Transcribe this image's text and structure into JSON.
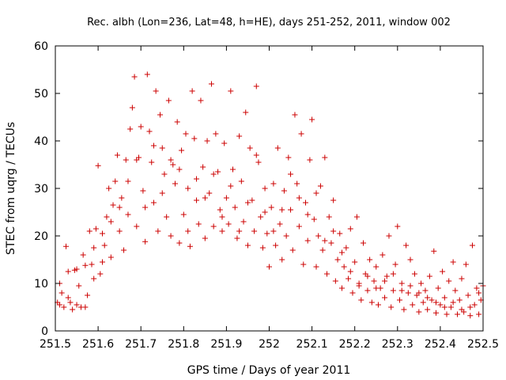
{
  "chart_data": {
    "type": "scatter",
    "title": "Rec. albh (Lon=236, Lat=48, h=HE), days 251-252, 2011, window 002",
    "xlabel": "GPS time / Days of year 2011",
    "ylabel": "STEC from uqrg / TECUs",
    "xlim": [
      251.5,
      252.5
    ],
    "ylim": [
      0,
      60
    ],
    "x_ticks": [
      251.5,
      251.6,
      251.7,
      251.8,
      251.9,
      252.0,
      252.1,
      252.2,
      252.3,
      252.4,
      252.5
    ],
    "x_tick_labels": [
      "251.5",
      "251.6",
      "251.7",
      "251.8",
      "251.9",
      "252",
      "252.1",
      "252.2",
      "252.3",
      "252.4",
      "252.5"
    ],
    "y_ticks": [
      0,
      10,
      20,
      30,
      40,
      50,
      60
    ],
    "y_tick_labels": [
      "0",
      "10",
      "20",
      "30",
      "40",
      "50",
      "60"
    ],
    "marker": "+",
    "color": "#cc0000",
    "grid": false,
    "legend": "none",
    "series": [
      {
        "name": "STEC",
        "points": [
          [
            251.505,
            6.0
          ],
          [
            251.51,
            5.5
          ],
          [
            251.515,
            8.0
          ],
          [
            251.52,
            5.0
          ],
          [
            251.525,
            17.8
          ],
          [
            251.53,
            12.5
          ],
          [
            251.535,
            6.0
          ],
          [
            251.54,
            4.5
          ],
          [
            251.545,
            12.8
          ],
          [
            251.55,
            5.5
          ],
          [
            251.555,
            9.5
          ],
          [
            251.56,
            5.0
          ],
          [
            251.565,
            16.0
          ],
          [
            251.57,
            13.8
          ],
          [
            251.575,
            7.5
          ],
          [
            251.58,
            21.0
          ],
          [
            251.585,
            14.0
          ],
          [
            251.59,
            11.0
          ],
          [
            251.595,
            21.5
          ],
          [
            251.6,
            34.8
          ],
          [
            251.605,
            12.0
          ],
          [
            251.61,
            20.5
          ],
          [
            251.615,
            18.0
          ],
          [
            251.62,
            24.0
          ],
          [
            251.625,
            30.0
          ],
          [
            251.63,
            15.5
          ],
          [
            251.635,
            26.5
          ],
          [
            251.64,
            31.5
          ],
          [
            251.645,
            37.0
          ],
          [
            251.65,
            21.0
          ],
          [
            251.655,
            28.0
          ],
          [
            251.66,
            17.0
          ],
          [
            251.665,
            36.0
          ],
          [
            251.67,
            24.5
          ],
          [
            251.675,
            42.5
          ],
          [
            251.68,
            47.0
          ],
          [
            251.685,
            53.5
          ],
          [
            251.69,
            22.0
          ],
          [
            251.695,
            36.5
          ],
          [
            251.7,
            43.0
          ],
          [
            251.705,
            29.5
          ],
          [
            251.71,
            18.8
          ],
          [
            251.715,
            54.0
          ],
          [
            251.72,
            42.0
          ],
          [
            251.725,
            35.5
          ],
          [
            251.73,
            27.0
          ],
          [
            251.735,
            50.5
          ],
          [
            251.74,
            21.0
          ],
          [
            251.745,
            45.5
          ],
          [
            251.75,
            38.5
          ],
          [
            251.755,
            33.0
          ],
          [
            251.76,
            24.0
          ],
          [
            251.765,
            48.5
          ],
          [
            251.77,
            20.0
          ],
          [
            251.775,
            35.0
          ],
          [
            251.78,
            31.0
          ],
          [
            251.785,
            44.0
          ],
          [
            251.79,
            18.5
          ],
          [
            251.795,
            38.0
          ],
          [
            251.8,
            24.5
          ],
          [
            251.805,
            41.5
          ],
          [
            251.81,
            30.0
          ],
          [
            251.815,
            17.8
          ],
          [
            251.82,
            50.5
          ],
          [
            251.825,
            40.5
          ],
          [
            251.83,
            27.5
          ],
          [
            251.835,
            22.5
          ],
          [
            251.84,
            48.5
          ],
          [
            251.845,
            34.5
          ],
          [
            251.85,
            19.5
          ],
          [
            251.855,
            40.0
          ],
          [
            251.86,
            29.0
          ],
          [
            251.865,
            52.0
          ],
          [
            251.87,
            22.0
          ],
          [
            251.875,
            41.5
          ],
          [
            251.88,
            33.5
          ],
          [
            251.885,
            25.5
          ],
          [
            251.89,
            21.0
          ],
          [
            251.895,
            39.5
          ],
          [
            251.9,
            28.0
          ],
          [
            251.905,
            22.5
          ],
          [
            251.91,
            50.5
          ],
          [
            251.915,
            34.0
          ],
          [
            251.92,
            26.0
          ],
          [
            251.925,
            19.5
          ],
          [
            251.93,
            41.0
          ],
          [
            251.935,
            31.5
          ],
          [
            251.94,
            23.0
          ],
          [
            251.945,
            46.0
          ],
          [
            251.95,
            18.0
          ],
          [
            251.955,
            38.5
          ],
          [
            251.96,
            27.5
          ],
          [
            251.965,
            21.0
          ],
          [
            251.97,
            51.5
          ],
          [
            251.975,
            35.5
          ],
          [
            251.98,
            24.0
          ],
          [
            251.985,
            17.5
          ],
          [
            251.99,
            30.0
          ],
          [
            251.995,
            20.5
          ],
          [
            252.0,
            13.5
          ],
          [
            252.005,
            26.0
          ],
          [
            252.01,
            31.0
          ],
          [
            252.015,
            18.0
          ],
          [
            252.02,
            38.5
          ],
          [
            252.025,
            22.5
          ],
          [
            252.03,
            15.0
          ],
          [
            252.035,
            29.5
          ],
          [
            252.04,
            20.0
          ],
          [
            252.045,
            36.5
          ],
          [
            252.05,
            25.5
          ],
          [
            252.055,
            17.0
          ],
          [
            252.06,
            45.5
          ],
          [
            252.065,
            31.0
          ],
          [
            252.07,
            22.0
          ],
          [
            252.075,
            41.5
          ],
          [
            252.08,
            14.0
          ],
          [
            252.085,
            27.0
          ],
          [
            252.09,
            19.0
          ],
          [
            252.095,
            36.0
          ],
          [
            252.1,
            44.5
          ],
          [
            252.105,
            23.5
          ],
          [
            252.11,
            13.5
          ],
          [
            252.115,
            20.0
          ],
          [
            252.12,
            30.5
          ],
          [
            252.125,
            17.0
          ],
          [
            252.13,
            36.5
          ],
          [
            252.135,
            12.0
          ],
          [
            252.14,
            24.0
          ],
          [
            252.145,
            18.5
          ],
          [
            252.15,
            27.5
          ],
          [
            252.155,
            10.5
          ],
          [
            252.16,
            15.0
          ],
          [
            252.165,
            20.5
          ],
          [
            252.17,
            9.0
          ],
          [
            252.175,
            13.5
          ],
          [
            252.18,
            17.5
          ],
          [
            252.185,
            11.0
          ],
          [
            252.19,
            21.5
          ],
          [
            252.195,
            8.0
          ],
          [
            252.2,
            14.5
          ],
          [
            252.205,
            24.0
          ],
          [
            252.21,
            10.0
          ],
          [
            252.215,
            6.5
          ],
          [
            252.22,
            18.5
          ],
          [
            252.225,
            12.0
          ],
          [
            252.23,
            8.5
          ],
          [
            252.235,
            15.0
          ],
          [
            252.24,
            6.0
          ],
          [
            252.245,
            10.5
          ],
          [
            252.25,
            13.5
          ],
          [
            252.255,
            5.5
          ],
          [
            252.26,
            9.0
          ],
          [
            252.265,
            16.0
          ],
          [
            252.27,
            7.0
          ],
          [
            252.275,
            11.5
          ],
          [
            252.28,
            20.0
          ],
          [
            252.285,
            5.0
          ],
          [
            252.29,
            8.5
          ],
          [
            252.295,
            14.0
          ],
          [
            252.3,
            22.0
          ],
          [
            252.305,
            6.5
          ],
          [
            252.31,
            10.0
          ],
          [
            252.315,
            4.5
          ],
          [
            252.32,
            18.0
          ],
          [
            252.325,
            8.0
          ],
          [
            252.33,
            15.0
          ],
          [
            252.335,
            5.5
          ],
          [
            252.34,
            12.0
          ],
          [
            252.345,
            7.5
          ],
          [
            252.35,
            4.0
          ],
          [
            252.355,
            10.0
          ],
          [
            252.36,
            6.0
          ],
          [
            252.365,
            8.5
          ],
          [
            252.37,
            4.5
          ],
          [
            252.375,
            11.5
          ],
          [
            252.38,
            6.5
          ],
          [
            252.385,
            16.8
          ],
          [
            252.39,
            3.8
          ],
          [
            252.395,
            9.0
          ],
          [
            252.4,
            5.5
          ],
          [
            252.405,
            12.5
          ],
          [
            252.41,
            7.0
          ],
          [
            252.415,
            3.5
          ],
          [
            252.42,
            10.5
          ],
          [
            252.425,
            5.0
          ],
          [
            252.43,
            14.5
          ],
          [
            252.435,
            8.5
          ],
          [
            252.44,
            3.5
          ],
          [
            252.445,
            6.5
          ],
          [
            252.45,
            11.0
          ],
          [
            252.455,
            4.0
          ],
          [
            252.46,
            14.0
          ],
          [
            252.465,
            7.5
          ],
          [
            252.47,
            3.2
          ],
          [
            252.475,
            18.0
          ],
          [
            252.48,
            5.5
          ],
          [
            252.485,
            9.0
          ],
          [
            252.49,
            3.5
          ],
          [
            252.495,
            6.5
          ],
          [
            252.5,
            9.5
          ],
          [
            251.51,
            10.0
          ],
          [
            251.53,
            7.0
          ],
          [
            251.55,
            13.0
          ],
          [
            251.57,
            5.0
          ],
          [
            251.59,
            17.5
          ],
          [
            251.61,
            14.5
          ],
          [
            251.63,
            23.0
          ],
          [
            251.65,
            26.0
          ],
          [
            251.67,
            31.5
          ],
          [
            251.69,
            36.0
          ],
          [
            251.71,
            26.0
          ],
          [
            251.73,
            39.0
          ],
          [
            251.75,
            29.0
          ],
          [
            251.77,
            36.0
          ],
          [
            251.79,
            34.0
          ],
          [
            251.81,
            21.0
          ],
          [
            251.83,
            32.0
          ],
          [
            251.85,
            28.0
          ],
          [
            251.87,
            33.0
          ],
          [
            251.89,
            24.0
          ],
          [
            251.91,
            30.5
          ],
          [
            251.93,
            21.0
          ],
          [
            251.95,
            27.0
          ],
          [
            251.97,
            37.0
          ],
          [
            251.99,
            25.0
          ],
          [
            252.01,
            21.0
          ],
          [
            252.03,
            25.5
          ],
          [
            252.05,
            33.0
          ],
          [
            252.07,
            28.0
          ],
          [
            252.09,
            24.5
          ],
          [
            252.11,
            29.0
          ],
          [
            252.13,
            19.0
          ],
          [
            252.15,
            21.0
          ],
          [
            252.17,
            16.5
          ],
          [
            252.19,
            12.5
          ],
          [
            252.21,
            9.5
          ],
          [
            252.23,
            11.5
          ],
          [
            252.25,
            9.0
          ],
          [
            252.27,
            10.5
          ],
          [
            252.29,
            12.0
          ],
          [
            252.31,
            8.5
          ],
          [
            252.33,
            9.5
          ],
          [
            252.35,
            8.0
          ],
          [
            252.37,
            7.0
          ],
          [
            252.39,
            6.0
          ],
          [
            252.41,
            5.0
          ],
          [
            252.43,
            6.0
          ],
          [
            252.45,
            4.5
          ],
          [
            252.47,
            5.0
          ],
          [
            252.49,
            8.0
          ]
        ]
      }
    ]
  }
}
